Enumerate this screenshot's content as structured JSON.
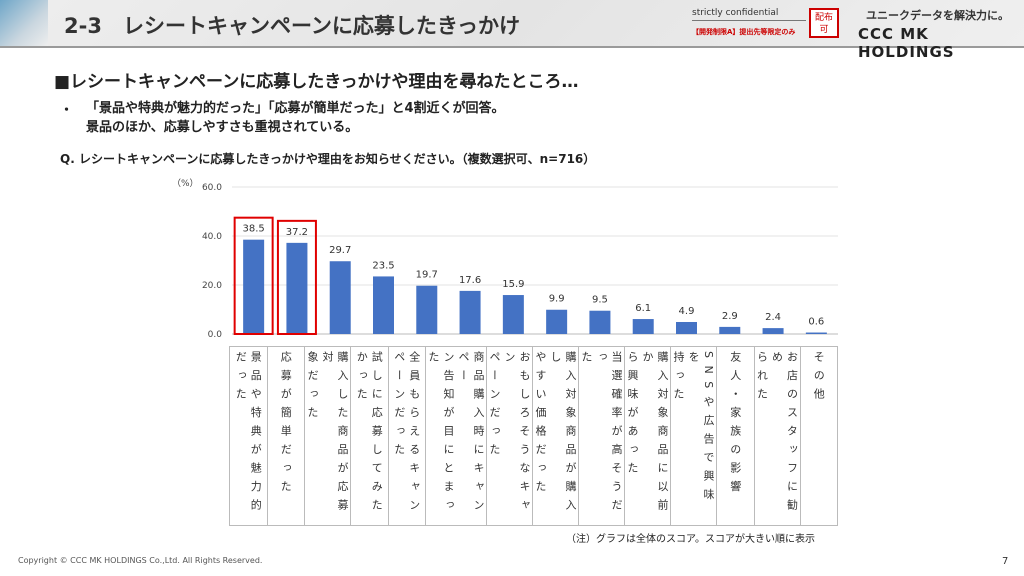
{
  "header": {
    "title": "2-3　レシートキャンペーンに応募したきっかけ",
    "confidential": "strictly confidential",
    "disclosure": "【開発制限A】提出先等限定のみ",
    "distribution": "配布\n可",
    "slogan": "ユニークデータを解決力に。",
    "logo": "CCC MK HOLDINGS"
  },
  "heading": "■レシートキャンペーンに応募したきっかけや理由を尋ねたところ…",
  "bullet_mark": "・",
  "bullet": "「景品や特典が魅力的だった」「応募が簡単だった」と4割近くが回答。\n景品のほか、応募しやすさも重視されている。",
  "question": "Q. レシートキャンペーンに応募したきっかけや理由をお知らせください。（複数選択可、n=716）",
  "note": "（注）グラフは全体のスコア。スコアが大きい順に表示",
  "footer": "Copyright © CCC MK HOLDINGS Co.,Ltd. All Rights Reserved.",
  "page": "7",
  "colors": {
    "bar": "#4472c4",
    "highlight": "#e00000"
  },
  "chart_data": {
    "type": "bar",
    "ylabel": "（%）",
    "ylim": [
      0,
      60
    ],
    "yticks": [
      "0.0",
      "20.0",
      "40.0",
      "60.0"
    ],
    "grid": true,
    "categories": [
      "景品や特典が魅力的\nだった",
      "応募が簡単だった",
      "購入した商品が応募対\n象だった",
      "試しに応募してみた\nかった",
      "全員もらえるキャン\nペーンだった",
      "商品購入時にキャンペー\nン告知が目にとまった",
      "おもしろそうなキャン\nペーンだった",
      "購入対象商品が購入し\nやすい価格だった",
      "当選確率が高そうだっ\nた",
      "購入対象商品に以前か\nら興味があった",
      "SNSや広告で興味を\n持った",
      "友人・家族の影響",
      "お店のスタッフに勧め\nられた",
      "その他"
    ],
    "values": [
      38.5,
      37.2,
      29.7,
      23.5,
      19.7,
      17.6,
      15.9,
      9.9,
      9.5,
      6.1,
      4.9,
      2.9,
      2.4,
      0.6
    ],
    "value_labels": [
      "38.5",
      "37.2",
      "29.7",
      "23.5",
      "19.7",
      "17.6",
      "15.9",
      "9.9",
      "9.5",
      "6.1",
      "4.9",
      "2.9",
      "2.4",
      "0.6"
    ],
    "highlighted": [
      0,
      1
    ]
  }
}
